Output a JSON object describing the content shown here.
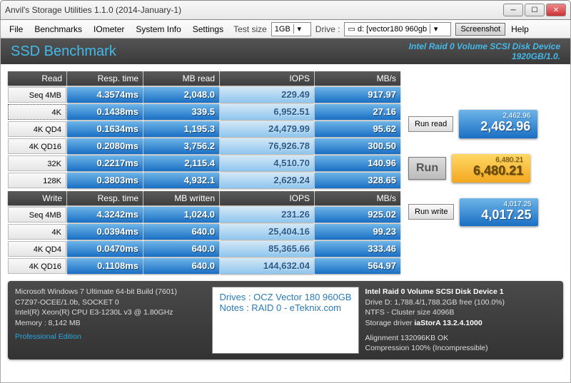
{
  "window": {
    "title": "Anvil's Storage Utilities 1.1.0 (2014-January-1)"
  },
  "menu": {
    "file": "File",
    "benchmarks": "Benchmarks",
    "iometer": "IOmeter",
    "sysinfo": "System Info",
    "settings": "Settings",
    "testsize_lbl": "Test size",
    "testsize_val": "1GB",
    "drive_lbl": "Drive :",
    "drive_val": "▭ d: [vector180 960gb",
    "screenshot": "Screenshot",
    "help": "Help"
  },
  "heading": {
    "left": "SSD Benchmark",
    "right1": "Intel Raid 0 Volume SCSI Disk Device",
    "right2": "1920GB/1.0."
  },
  "read": {
    "hdr": [
      "Read",
      "Resp. time",
      "MB read",
      "IOPS",
      "MB/s"
    ],
    "rows": [
      {
        "label": "Seq 4MB",
        "resp": "4.3574ms",
        "mb": "2,048.0",
        "iops": "229.49",
        "mbs": "917.97"
      },
      {
        "label": "4K",
        "resp": "0.1438ms",
        "mb": "339.5",
        "iops": "6,952.51",
        "mbs": "27.16",
        "focused": true
      },
      {
        "label": "4K QD4",
        "resp": "0.1634ms",
        "mb": "1,195.3",
        "iops": "24,479.99",
        "mbs": "95.62"
      },
      {
        "label": "4K QD16",
        "resp": "0.2080ms",
        "mb": "3,756.2",
        "iops": "76,926.78",
        "mbs": "300.50"
      },
      {
        "label": "32K",
        "resp": "0.2217ms",
        "mb": "2,115.4",
        "iops": "4,510.70",
        "mbs": "140.96"
      },
      {
        "label": "128K",
        "resp": "0.3803ms",
        "mb": "4,932.1",
        "iops": "2,629.24",
        "mbs": "328.65"
      }
    ]
  },
  "write": {
    "hdr": [
      "Write",
      "Resp. time",
      "MB written",
      "IOPS",
      "MB/s"
    ],
    "rows": [
      {
        "label": "Seq 4MB",
        "resp": "4.3242ms",
        "mb": "1,024.0",
        "iops": "231.26",
        "mbs": "925.02"
      },
      {
        "label": "4K",
        "resp": "0.0394ms",
        "mb": "640.0",
        "iops": "25,404.16",
        "mbs": "99.23"
      },
      {
        "label": "4K QD4",
        "resp": "0.0470ms",
        "mb": "640.0",
        "iops": "85,365.66",
        "mbs": "333.46"
      },
      {
        "label": "4K QD16",
        "resp": "0.1108ms",
        "mb": "640.0",
        "iops": "144,632.04",
        "mbs": "564.97"
      }
    ]
  },
  "actions": {
    "run_read": "Run read",
    "run_write": "Run write",
    "run": "Run",
    "read_score_small": "2,462.96",
    "read_score_big": "2,462.96",
    "total_score_small": "6,480.21",
    "total_score_big": "6,480.21",
    "write_score_small": "4,017.25",
    "write_score_big": "4,017.25"
  },
  "footer": {
    "os": "Microsoft Windows 7 Ultimate  64-bit Build (7601)",
    "mobo": "C7Z97-OCEE/1.0b, SOCKET 0",
    "cpu": "Intel(R) Xeon(R) CPU E3-1230L v3 @ 1.80GHz",
    "mem": "Memory : 8,142 MB",
    "pro": "Professional Edition",
    "drives": "Drives : OCZ Vector 180 960GB",
    "notes": "Notes : RAID 0 - eTeknix.com",
    "dev": "Intel Raid 0 Volume SCSI Disk Device 1",
    "drv": "Drive D: 1,788.4/1,788.2GB free (100.0%)",
    "fs": "NTFS - Cluster size 4096B",
    "driver_lbl": "Storage driver ",
    "driver": "iaStorA 13.2.4.1000",
    "align": "Alignment 132096KB OK",
    "comp": "Compression 100% (Incompressible)"
  }
}
